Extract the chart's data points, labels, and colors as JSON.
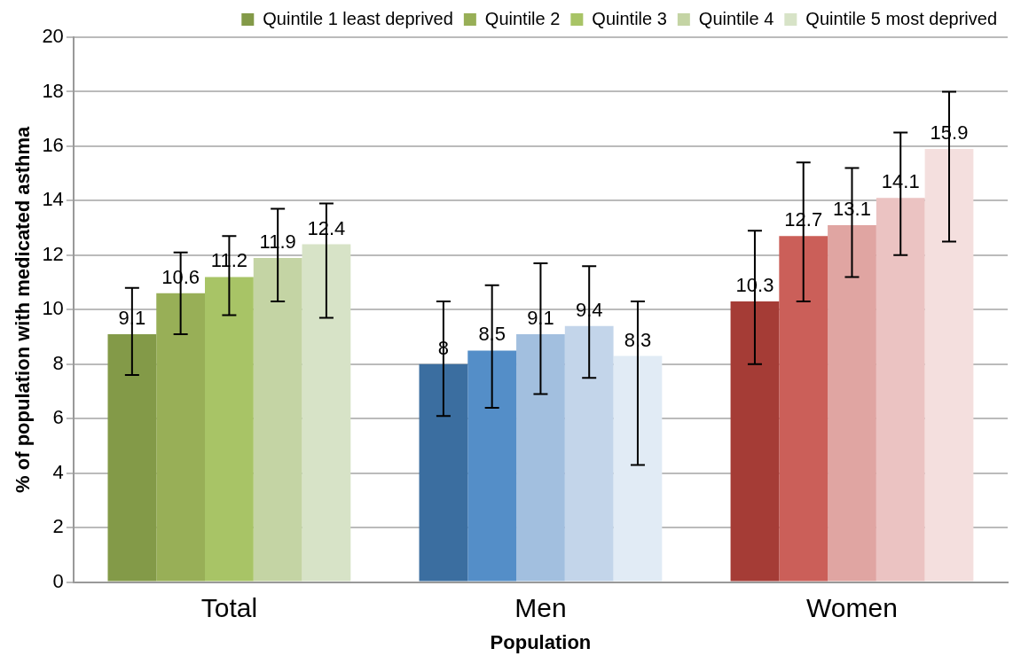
{
  "chart_data": {
    "type": "bar",
    "xlabel": "Population",
    "ylabel": "% of population with medicated asthma",
    "categories": [
      "Total",
      "Men",
      "Women"
    ],
    "series": [
      {
        "name": "Quintile 1 least deprived",
        "color": "#839a48",
        "colors": [
          "#839a48",
          "#3b6ea0",
          "#a53c36"
        ],
        "values": [
          9.1,
          8,
          10.3
        ],
        "errors": [
          [
            7.6,
            10.8
          ],
          [
            6.1,
            10.3
          ],
          [
            8.0,
            12.9
          ]
        ]
      },
      {
        "name": "Quintile 2",
        "color": "#98af57",
        "colors": [
          "#98af57",
          "#548ec8",
          "#cb5f59"
        ],
        "values": [
          10.6,
          8.5,
          12.7
        ],
        "errors": [
          [
            9.1,
            12.1
          ],
          [
            6.4,
            10.9
          ],
          [
            10.3,
            15.4
          ]
        ]
      },
      {
        "name": "Quintile 3",
        "color": "#a8c466",
        "colors": [
          "#a8c466",
          "#a2bfdf",
          "#e0a5a2"
        ],
        "values": [
          11.2,
          9.1,
          13.1
        ],
        "errors": [
          [
            9.8,
            12.7
          ],
          [
            6.9,
            11.7
          ],
          [
            11.2,
            15.2
          ]
        ]
      },
      {
        "name": "Quintile 4",
        "color": "#c4d4a4",
        "colors": [
          "#c4d4a4",
          "#c3d5ea",
          "#ebc3c2"
        ],
        "values": [
          11.9,
          9.4,
          14.1
        ],
        "errors": [
          [
            10.3,
            13.7
          ],
          [
            7.5,
            11.6
          ],
          [
            12.0,
            16.5
          ]
        ]
      },
      {
        "name": "Quintile 5 most deprived",
        "color": "#d7e3c7",
        "colors": [
          "#d7e3c7",
          "#e1ebf5",
          "#f4dfde"
        ],
        "values": [
          12.4,
          8.3,
          15.9
        ],
        "errors": [
          [
            9.7,
            13.9
          ],
          [
            4.3,
            10.3
          ],
          [
            12.5,
            18.0
          ]
        ]
      }
    ],
    "ylim": [
      0,
      20
    ],
    "yticks": [
      0,
      2,
      4,
      6,
      8,
      10,
      12,
      14,
      16,
      18,
      20
    ],
    "grid": "y",
    "legend": "top",
    "data_labels": true
  }
}
